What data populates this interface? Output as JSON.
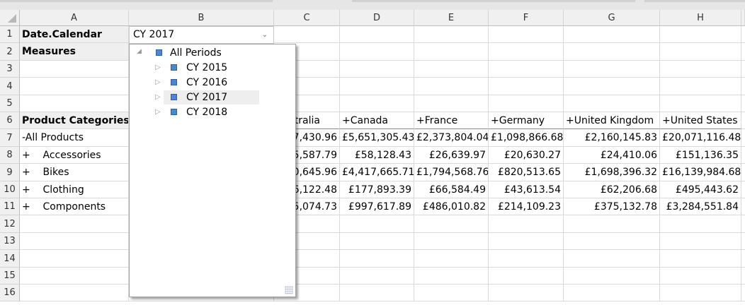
{
  "columns": [
    "A",
    "B",
    "C",
    "D",
    "E",
    "F",
    "G",
    "H"
  ],
  "rows": [
    "1",
    "2",
    "3",
    "4",
    "5",
    "6",
    "7",
    "8",
    "9",
    "10",
    "11",
    "12",
    "13",
    "14",
    "15",
    "16"
  ],
  "cells": {
    "a1": "Date.Calendar",
    "a2": "Measures",
    "a6": "Product Categories",
    "filter_value": "CY 2017",
    "col_headers": [
      "Australia",
      "+Canada",
      "+France",
      "+Germany",
      "+United Kingdom",
      "+United States"
    ],
    "data_rows": [
      {
        "label": "-All Products",
        "values": [
          "7,430.96",
          "£5,651,305.43",
          "£2,373,804.04",
          "£1,098,866.68",
          "£2,160,145.83",
          "£20,071,116.48"
        ]
      },
      {
        "label": "+    Accessories",
        "values": [
          "5,587.79",
          "£58,128.43",
          "£26,639.97",
          "£20,630.27",
          "£24,410.06",
          "£151,136.35"
        ]
      },
      {
        "label": "+    Bikes",
        "values": [
          "0,645.96",
          "£4,417,665.71",
          "£1,794,568.76",
          "£820,513.65",
          "£1,698,396.32",
          "£16,139,984.68"
        ]
      },
      {
        "label": "+    Clothing",
        "values": [
          "6,122.48",
          "£177,893.39",
          "£66,584.49",
          "£43,613.54",
          "£62,206.68",
          "£495,443.62"
        ]
      },
      {
        "label": "+    Components",
        "values": [
          "5,074.73",
          "£997,617.89",
          "£486,010.82",
          "£214,109.23",
          "£375,132.78",
          "£3,284,551.84"
        ]
      }
    ]
  },
  "dropdown": {
    "root": "All Periods",
    "items": [
      "CY 2015",
      "CY 2016",
      "CY 2017",
      "CY 2018"
    ],
    "selected": "CY 2017"
  },
  "colors": {
    "member_icon": "#4a86d8",
    "header_bg": "#f0f0f0",
    "label_shade": "#efefef"
  }
}
